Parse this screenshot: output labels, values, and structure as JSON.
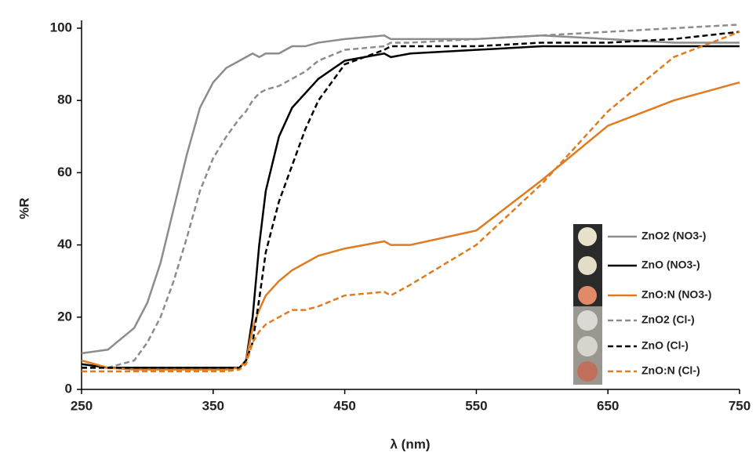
{
  "chart_data": {
    "type": "line",
    "x_label": "λ (nm)",
    "y_label": "%R",
    "x": [
      250,
      270,
      290,
      300,
      310,
      320,
      330,
      340,
      350,
      360,
      370,
      375,
      380,
      385,
      390,
      400,
      410,
      420,
      430,
      450,
      480,
      485,
      500,
      550,
      600,
      650,
      700,
      750
    ],
    "xlim": [
      250,
      750
    ],
    "xticks": [
      250,
      350,
      450,
      550,
      650,
      750
    ],
    "ylim": [
      0,
      100
    ],
    "yticks": [
      0,
      20,
      40,
      60,
      80,
      100
    ],
    "legend": "bottom-right",
    "series": [
      {
        "name": "ZnO2 (NO3-)",
        "color": "#8c8c8c",
        "linestyle": "solid",
        "values": [
          10,
          11,
          17,
          24,
          35,
          50,
          65,
          78,
          85,
          89,
          91,
          92,
          93,
          92,
          93,
          93,
          95,
          95,
          96,
          97,
          98,
          97,
          97,
          97,
          98,
          97,
          96,
          96
        ]
      },
      {
        "name": "ZnO (NO3-)",
        "color": "#000000",
        "linestyle": "solid",
        "values": [
          7,
          6,
          6,
          6,
          6,
          6,
          6,
          6,
          6,
          6,
          6,
          8,
          20,
          40,
          55,
          70,
          78,
          82,
          86,
          91,
          93,
          92,
          93,
          94,
          95,
          95,
          95,
          95
        ]
      },
      {
        "name": "ZnO:N (NO3-)",
        "color": "#e07b20",
        "linestyle": "solid",
        "values": [
          8,
          6,
          5.5,
          5.5,
          5.5,
          5.5,
          5.5,
          5.5,
          5.5,
          5.5,
          6,
          8,
          17,
          22,
          26,
          30,
          33,
          35,
          37,
          39,
          41,
          40,
          40,
          44,
          58,
          73,
          80,
          85
        ]
      },
      {
        "name": "ZnO2 (Cl-)",
        "color": "#8c8c8c",
        "linestyle": "dashed",
        "values": [
          6,
          6,
          8,
          13,
          20,
          30,
          42,
          55,
          64,
          70,
          75,
          77,
          80,
          82,
          83,
          84,
          86,
          88,
          91,
          94,
          95,
          96,
          96,
          97,
          98,
          99,
          100,
          101
        ]
      },
      {
        "name": "ZnO (Cl-)",
        "color": "#000000",
        "linestyle": "dashed",
        "values": [
          6,
          6,
          6,
          6,
          6,
          6,
          6,
          6,
          6,
          6,
          6,
          8,
          13,
          25,
          38,
          52,
          62,
          72,
          80,
          90,
          94,
          95,
          95,
          95,
          96,
          96,
          97,
          99
        ]
      },
      {
        "name": "ZnO:N (Cl-)",
        "color": "#e07b20",
        "linestyle": "dashed",
        "values": [
          5,
          5,
          5,
          5,
          5,
          5,
          5,
          5,
          5,
          5,
          5.5,
          7,
          13,
          16,
          18,
          20,
          22,
          22,
          23,
          26,
          27,
          26,
          29,
          40,
          57,
          77,
          92,
          99
        ]
      }
    ]
  }
}
